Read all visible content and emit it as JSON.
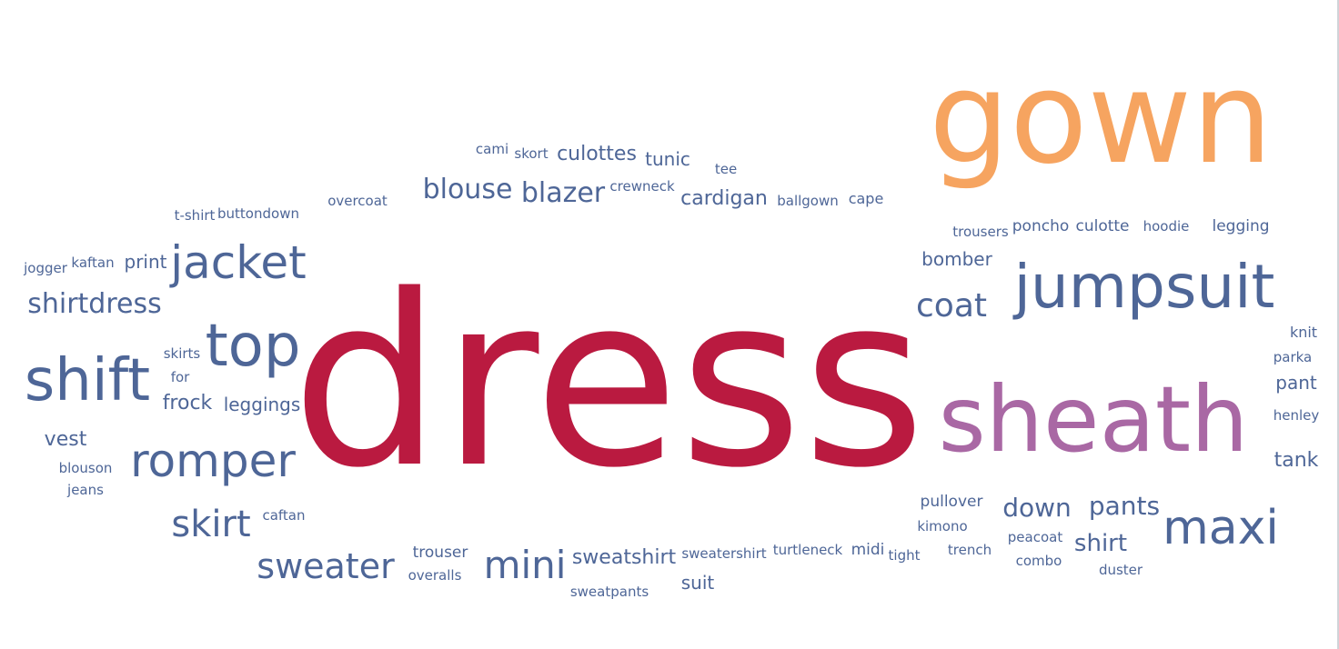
{
  "chart_data": {
    "type": "wordcloud",
    "colors": {
      "primary": "#ba1a40",
      "secondary": "#f6a460",
      "tertiary": "#a968a4",
      "default": "#4e6697"
    },
    "words": [
      {
        "text": "dress",
        "weight": 100,
        "color": "primary"
      },
      {
        "text": "gown",
        "weight": 56,
        "color": "secondary"
      },
      {
        "text": "sheath",
        "weight": 38,
        "color": "tertiary"
      },
      {
        "text": "jumpsuit",
        "weight": 25,
        "color": "default"
      },
      {
        "text": "top",
        "weight": 24,
        "color": "default"
      },
      {
        "text": "shift",
        "weight": 24,
        "color": "default"
      },
      {
        "text": "maxi",
        "weight": 20,
        "color": "default"
      },
      {
        "text": "jacket",
        "weight": 19,
        "color": "default"
      },
      {
        "text": "romper",
        "weight": 19,
        "color": "default"
      },
      {
        "text": "mini",
        "weight": 15,
        "color": "default"
      },
      {
        "text": "skirt",
        "weight": 15,
        "color": "default"
      },
      {
        "text": "sweater",
        "weight": 14,
        "color": "default"
      },
      {
        "text": "coat",
        "weight": 13,
        "color": "default"
      },
      {
        "text": "shirtdress",
        "weight": 12,
        "color": "default"
      },
      {
        "text": "blazer",
        "weight": 11,
        "color": "default"
      },
      {
        "text": "blouse",
        "weight": 11,
        "color": "default"
      },
      {
        "text": "pants",
        "weight": 11,
        "color": "default"
      },
      {
        "text": "down",
        "weight": 11,
        "color": "default"
      },
      {
        "text": "shirt",
        "weight": 10,
        "color": "default"
      },
      {
        "text": "sweatshirt",
        "weight": 9,
        "color": "default"
      },
      {
        "text": "cardigan",
        "weight": 9,
        "color": "default"
      },
      {
        "text": "culottes",
        "weight": 9,
        "color": "default"
      },
      {
        "text": "frock",
        "weight": 9,
        "color": "default"
      },
      {
        "text": "leggings",
        "weight": 8,
        "color": "default"
      },
      {
        "text": "bomber",
        "weight": 8,
        "color": "default"
      },
      {
        "text": "tunic",
        "weight": 8,
        "color": "default"
      },
      {
        "text": "tank",
        "weight": 8,
        "color": "default"
      },
      {
        "text": "vest",
        "weight": 8,
        "color": "default"
      },
      {
        "text": "print",
        "weight": 8,
        "color": "default"
      },
      {
        "text": "suit",
        "weight": 8,
        "color": "default"
      },
      {
        "text": "pant",
        "weight": 8,
        "color": "default"
      },
      {
        "text": "trouser",
        "weight": 7,
        "color": "default"
      },
      {
        "text": "poncho",
        "weight": 7,
        "color": "default"
      },
      {
        "text": "culotte",
        "weight": 7,
        "color": "default"
      },
      {
        "text": "legging",
        "weight": 7,
        "color": "default"
      },
      {
        "text": "pullover",
        "weight": 7,
        "color": "default"
      },
      {
        "text": "midi",
        "weight": 7,
        "color": "default"
      },
      {
        "text": "cape",
        "weight": 6,
        "color": "default"
      },
      {
        "text": "knit",
        "weight": 6,
        "color": "default"
      },
      {
        "text": "overcoat",
        "weight": 6,
        "color": "default"
      },
      {
        "text": "trousers",
        "weight": 6,
        "color": "default"
      },
      {
        "text": "turtleneck",
        "weight": 6,
        "color": "default"
      },
      {
        "text": "sweatershirt",
        "weight": 6,
        "color": "default"
      },
      {
        "text": "henley",
        "weight": 6,
        "color": "default"
      },
      {
        "text": "skort",
        "weight": 6,
        "color": "default"
      },
      {
        "text": "cami",
        "weight": 6,
        "color": "default"
      },
      {
        "text": "ballgown",
        "weight": 6,
        "color": "default"
      },
      {
        "text": "tee",
        "weight": 6,
        "color": "default"
      },
      {
        "text": "crewneck",
        "weight": 6,
        "color": "default"
      },
      {
        "text": "hoodie",
        "weight": 6,
        "color": "default"
      },
      {
        "text": "parka",
        "weight": 6,
        "color": "default"
      },
      {
        "text": "trench",
        "weight": 6,
        "color": "default"
      },
      {
        "text": "peacoat",
        "weight": 6,
        "color": "default"
      },
      {
        "text": "combo",
        "weight": 6,
        "color": "default"
      },
      {
        "text": "duster",
        "weight": 6,
        "color": "default"
      },
      {
        "text": "kimono",
        "weight": 6,
        "color": "default"
      },
      {
        "text": "tight",
        "weight": 6,
        "color": "default"
      },
      {
        "text": "overalls",
        "weight": 6,
        "color": "default"
      },
      {
        "text": "sweatpants",
        "weight": 6,
        "color": "default"
      },
      {
        "text": "caftan",
        "weight": 6,
        "color": "default"
      },
      {
        "text": "jeans",
        "weight": 6,
        "color": "default"
      },
      {
        "text": "blouson",
        "weight": 6,
        "color": "default"
      },
      {
        "text": "skirts",
        "weight": 6,
        "color": "default"
      },
      {
        "text": "for",
        "weight": 6,
        "color": "default"
      },
      {
        "text": "kaftan",
        "weight": 6,
        "color": "default"
      },
      {
        "text": "jogger",
        "weight": 6,
        "color": "default"
      },
      {
        "text": "t-shirt",
        "weight": 6,
        "color": "default"
      },
      {
        "text": "buttondown",
        "weight": 6,
        "color": "default"
      }
    ]
  }
}
